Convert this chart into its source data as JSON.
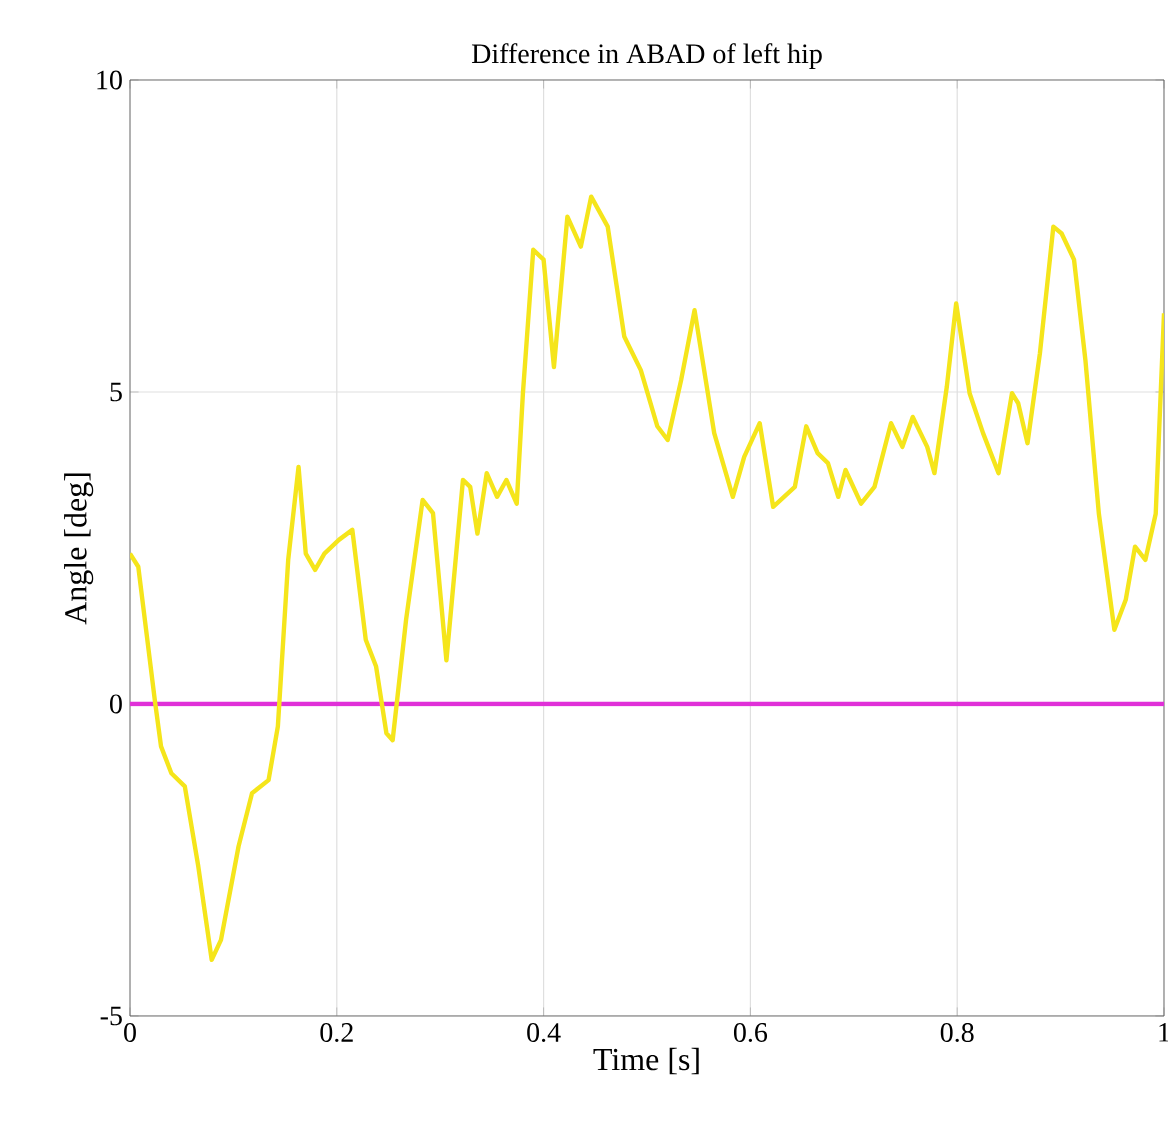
{
  "chart_data": {
    "type": "line",
    "title": "Difference in ABAD of left hip",
    "xlabel": "Time [s]",
    "ylabel": "Angle [deg]",
    "xlim": [
      0,
      1
    ],
    "ylim": [
      -5,
      10
    ],
    "xticks": [
      0,
      0.2,
      0.4,
      0.6,
      0.8,
      1
    ],
    "yticks": [
      -5,
      0,
      5,
      10
    ],
    "grid": true,
    "series": [
      {
        "color": "#f5e51b",
        "x": [
          0.0,
          0.008,
          0.024,
          0.03,
          0.04,
          0.053,
          0.066,
          0.079,
          0.088,
          0.105,
          0.118,
          0.134,
          0.143,
          0.153,
          0.163,
          0.17,
          0.179,
          0.188,
          0.202,
          0.215,
          0.228,
          0.238,
          0.248,
          0.254,
          0.267,
          0.283,
          0.293,
          0.306,
          0.322,
          0.329,
          0.336,
          0.345,
          0.355,
          0.364,
          0.374,
          0.38,
          0.39,
          0.4,
          0.41,
          0.423,
          0.436,
          0.446,
          0.462,
          0.478,
          0.494,
          0.51,
          0.52,
          0.533,
          0.546,
          0.565,
          0.583,
          0.594,
          0.609,
          0.622,
          0.643,
          0.654,
          0.665,
          0.675,
          0.685,
          0.692,
          0.707,
          0.72,
          0.736,
          0.747,
          0.757,
          0.771,
          0.778,
          0.79,
          0.799,
          0.812,
          0.825,
          0.84,
          0.853,
          0.859,
          0.868,
          0.88,
          0.893,
          0.901,
          0.913,
          0.924,
          0.937,
          0.952,
          0.963,
          0.972,
          0.982,
          0.992,
          1.0
        ],
        "values": [
          2.41,
          2.2,
          0.06,
          -0.68,
          -1.11,
          -1.32,
          -2.6,
          -4.1,
          -3.78,
          -2.28,
          -1.43,
          -1.22,
          -0.36,
          2.31,
          3.8,
          2.41,
          2.15,
          2.41,
          2.63,
          2.79,
          1.03,
          0.6,
          -0.47,
          -0.58,
          1.35,
          3.27,
          3.06,
          0.7,
          3.59,
          3.48,
          2.73,
          3.7,
          3.32,
          3.59,
          3.21,
          4.98,
          7.28,
          7.12,
          5.4,
          7.81,
          7.33,
          8.13,
          7.65,
          5.89,
          5.35,
          4.45,
          4.23,
          5.19,
          6.31,
          4.34,
          3.32,
          3.96,
          4.5,
          3.16,
          3.48,
          4.45,
          4.02,
          3.86,
          3.32,
          3.75,
          3.21,
          3.48,
          4.5,
          4.12,
          4.6,
          4.12,
          3.7,
          5.09,
          6.42,
          4.98,
          4.34,
          3.7,
          4.98,
          4.82,
          4.18,
          5.62,
          7.65,
          7.54,
          7.12,
          5.51,
          3.05,
          1.19,
          1.67,
          2.52,
          2.31,
          3.05,
          6.26
        ]
      }
    ],
    "ref_lines": [
      {
        "axis": "y",
        "value": 0,
        "color": "#e030d8"
      }
    ]
  }
}
